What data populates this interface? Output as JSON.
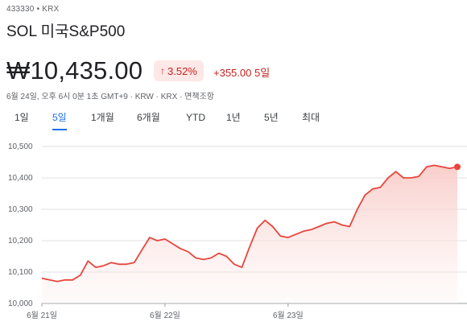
{
  "header": {
    "code": "433330",
    "exchange": "KRX",
    "separator": "•",
    "name": "SOL 미국S&P500"
  },
  "quote": {
    "price": "₩10,435.00",
    "pct_change": "3.52%",
    "pct_arrow": "↑",
    "abs_change": "+355.00 5일",
    "meta": "6월 24일, 오후 6시 0분 1초 GMT+9 · KRW · KRX · 면책조항"
  },
  "tabs": [
    {
      "label": "1일"
    },
    {
      "label": "5일"
    },
    {
      "label": "1개월"
    },
    {
      "label": "6개월"
    },
    {
      "label": "YTD"
    },
    {
      "label": "1년"
    },
    {
      "label": "5년"
    },
    {
      "label": "최대"
    }
  ],
  "active_tab": "5일",
  "colors": {
    "line": "#e8453c",
    "fill_top": "#f8c9c5",
    "grid": "#e0e0e0",
    "positive": "#c5221f",
    "active_tab": "#1a73e8"
  },
  "chart_data": {
    "type": "area",
    "ylim": [
      10000,
      10500
    ],
    "yticks": [
      10000,
      10100,
      10200,
      10300,
      10400,
      10500
    ],
    "ytick_labels": [
      "10,000",
      "10,100",
      "10,200",
      "10,300",
      "10,400",
      "10,500"
    ],
    "xtick_labels": [
      "6월 21일",
      "6월 22일",
      "6월 23일"
    ],
    "xtick_index": [
      0,
      16,
      32
    ],
    "grid": true,
    "series": [
      {
        "values": [
          10080,
          10075,
          10070,
          10075,
          10075,
          10090,
          10135,
          10115,
          10120,
          10130,
          10125,
          10125,
          10130,
          10170,
          10210,
          10200,
          10205,
          10190,
          10175,
          10165,
          10145,
          10140,
          10145,
          10160,
          10150,
          10125,
          10115,
          10180,
          10240,
          10265,
          10245,
          10215,
          10210,
          10220,
          10230,
          10235,
          10245,
          10255,
          10260,
          10250,
          10245,
          10300,
          10345,
          10365,
          10370,
          10400,
          10420,
          10400,
          10400,
          10405,
          10435,
          10440,
          10435,
          10430,
          10435
        ]
      }
    ],
    "last_point_marker": true
  }
}
